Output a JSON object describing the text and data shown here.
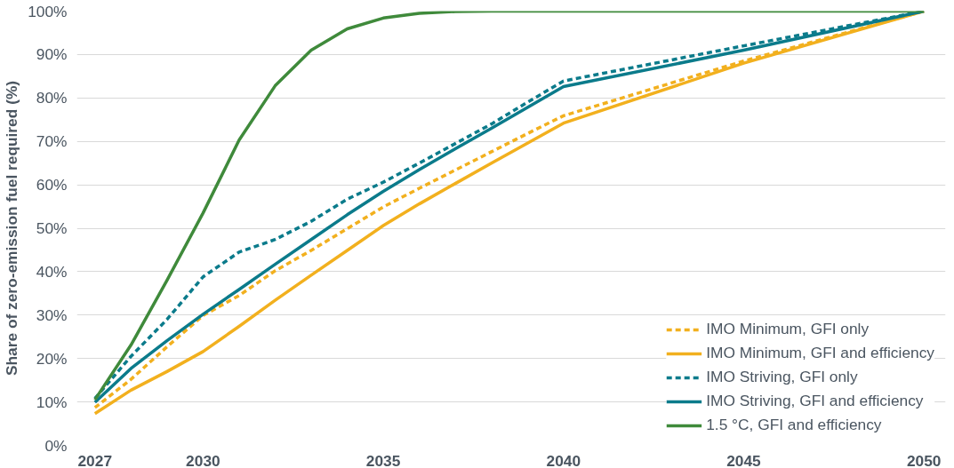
{
  "chart_data": {
    "type": "line",
    "ylabel": "Share of zero-emission fuel required (%)",
    "xlim": [
      2026.5,
      2050.6
    ],
    "xticks": [
      2027,
      2030,
      2035,
      2040,
      2045,
      2050
    ],
    "ylim": [
      0,
      100
    ],
    "yticks": [
      {
        "value": 0,
        "label": "0%"
      },
      {
        "value": 10,
        "label": "10%"
      },
      {
        "value": 20,
        "label": "20%"
      },
      {
        "value": 30,
        "label": "30%"
      },
      {
        "value": 40,
        "label": "40%"
      },
      {
        "value": 50,
        "label": "50%"
      },
      {
        "value": 60,
        "label": "60%"
      },
      {
        "value": 70,
        "label": "70%"
      },
      {
        "value": 80,
        "label": "80%"
      },
      {
        "value": 90,
        "label": "90%"
      },
      {
        "value": 100,
        "label": "100%"
      }
    ],
    "grid": "y",
    "legend": "bottom right",
    "series": [
      {
        "name": "IMO Minimum, GFI only",
        "color": "#f2b01e",
        "line_style": "dashed",
        "x": [
          2027,
          2028,
          2029,
          2030,
          2031,
          2032,
          2033,
          2034,
          2035,
          2036,
          2037,
          2038,
          2039,
          2040,
          2045,
          2050
        ],
        "values": [
          8.7,
          15.2,
          22.7,
          29.9,
          34.5,
          40.2,
          44.9,
          49.9,
          54.9,
          59.2,
          63.4,
          67.6,
          71.8,
          75.9,
          88.5,
          100
        ]
      },
      {
        "name": "IMO Minimum, GFI and efficiency",
        "color": "#f2b01e",
        "line_style": "solid",
        "x": [
          2027,
          2028,
          2029,
          2030,
          2031,
          2032,
          2033,
          2034,
          2035,
          2036,
          2037,
          2038,
          2039,
          2040,
          2045,
          2050
        ],
        "values": [
          7.3,
          12.7,
          17.0,
          21.6,
          27.4,
          33.4,
          39.2,
          44.9,
          50.6,
          55.6,
          60.3,
          65.0,
          69.6,
          74.2,
          88,
          100
        ]
      },
      {
        "name": "IMO Striving, GFI only",
        "color": "#0b7b8b",
        "line_style": "dashed",
        "x": [
          2027,
          2028,
          2029,
          2030,
          2031,
          2032,
          2033,
          2034,
          2035,
          2036,
          2037,
          2038,
          2039,
          2040,
          2045,
          2050
        ],
        "values": [
          10.8,
          20.5,
          29.0,
          38.8,
          44.5,
          47.4,
          51.6,
          56.7,
          60.6,
          65.0,
          69.5,
          74.0,
          79.0,
          83.9,
          92,
          100
        ]
      },
      {
        "name": "IMO Striving, GFI and efficiency",
        "color": "#0b7b8b",
        "line_style": "solid",
        "x": [
          2027,
          2028,
          2029,
          2030,
          2031,
          2032,
          2033,
          2034,
          2035,
          2036,
          2037,
          2038,
          2039,
          2040,
          2045,
          2050
        ],
        "values": [
          9.9,
          17.7,
          24.1,
          30.2,
          35.9,
          41.7,
          47.4,
          53.1,
          58.5,
          63.5,
          68.3,
          73.0,
          77.8,
          82.6,
          91,
          100
        ]
      },
      {
        "name": "1.5 °C, GFI and efficiency",
        "color": "#3f8a3b",
        "line_style": "solid",
        "x": [
          2027,
          2028,
          2029,
          2030,
          2031,
          2032,
          2033,
          2034,
          2035,
          2036,
          2037,
          2038,
          2040,
          2045,
          2050
        ],
        "values": [
          10.5,
          23.1,
          38.0,
          53.5,
          70.3,
          82.8,
          91.0,
          95.9,
          98.4,
          99.5,
          99.9,
          100,
          100,
          100,
          100
        ]
      }
    ]
  }
}
